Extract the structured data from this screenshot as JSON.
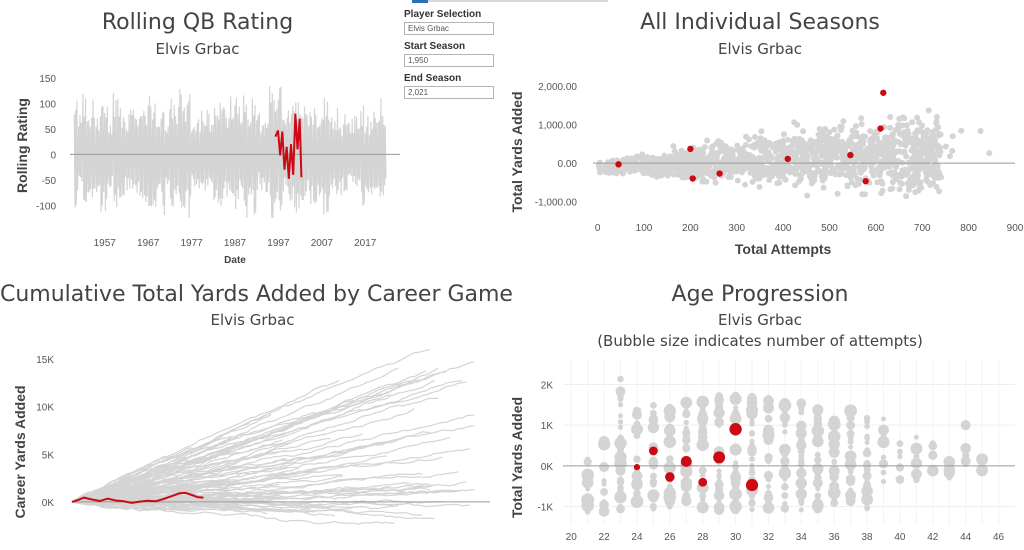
{
  "controls": {
    "player_label": "Player Selection",
    "player_value": "Elvis Grbac",
    "start_label": "Start Season",
    "start_value": "1,950",
    "end_label": "End Season",
    "end_value": "2,021"
  },
  "colors": {
    "background_series": "#d4d4d4",
    "highlight": "#cc0a14",
    "zero_line": "#9a9a9a"
  },
  "panels": {
    "rolling": {
      "title": "Rolling QB Rating",
      "subtitle": "Elvis Grbac"
    },
    "seasons": {
      "title": "All Individual Seasons",
      "subtitle": "Elvis Grbac"
    },
    "cumulative": {
      "title": "Cumulative Total Yards Added by Career Game",
      "subtitle": "Elvis Grbac"
    },
    "age": {
      "title": "Age Progression",
      "subtitle": "Elvis Grbac",
      "note": "(Bubble size indicates number of attempts)"
    }
  },
  "chart_data": [
    {
      "id": "rolling",
      "type": "line",
      "title": "Rolling QB Rating",
      "subtitle": "Elvis Grbac",
      "xlabel": "Date",
      "ylabel": "Rolling Rating",
      "x_ticks": [
        "1957",
        "1967",
        "1977",
        "1987",
        "1997",
        "2007",
        "2017"
      ],
      "y_ticks": [
        150,
        100,
        50,
        0,
        -50,
        -100
      ],
      "xlim": [
        1949,
        2025
      ],
      "ylim": [
        -125,
        160
      ],
      "grid": false,
      "background_range": {
        "x_from": 1950,
        "x_to": 2021,
        "y_min_approx": -125,
        "y_max_approx": 165
      },
      "highlight": {
        "series": [
          {
            "date": 1996.3,
            "value": 35
          },
          {
            "date": 1996.9,
            "value": 47
          },
          {
            "date": 1997.4,
            "value": -2
          },
          {
            "date": 1997.9,
            "value": 45
          },
          {
            "date": 1998.4,
            "value": -30
          },
          {
            "date": 1998.9,
            "value": 15
          },
          {
            "date": 1999.4,
            "value": -48
          },
          {
            "date": 1999.9,
            "value": 20
          },
          {
            "date": 2000.4,
            "value": -40
          },
          {
            "date": 2000.9,
            "value": 80
          },
          {
            "date": 2001.4,
            "value": 10
          },
          {
            "date": 2001.9,
            "value": 70
          },
          {
            "date": 2002.3,
            "value": -45
          }
        ]
      }
    },
    {
      "id": "seasons",
      "type": "scatter",
      "title": "All Individual Seasons",
      "subtitle": "Elvis Grbac",
      "xlabel": "Total Attempts",
      "ylabel": "Total Yards Added",
      "x_ticks": [
        0,
        100,
        200,
        300,
        400,
        500,
        600,
        700,
        800,
        900
      ],
      "y_ticks": [
        "2,000.00",
        "1,000.00",
        "0.00",
        "-1,000.00"
      ],
      "xlim": [
        -10,
        900
      ],
      "ylim": [
        -1400,
        2500
      ],
      "grid": false,
      "highlight": [
        {
          "attempts": 45,
          "yards_added": -30
        },
        {
          "attempts": 200,
          "yards_added": 370
        },
        {
          "attempts": 205,
          "yards_added": -400
        },
        {
          "attempts": 263,
          "yards_added": -270
        },
        {
          "attempts": 410,
          "yards_added": 110
        },
        {
          "attempts": 545,
          "yards_added": 210
        },
        {
          "attempts": 578,
          "yards_added": -470
        },
        {
          "attempts": 610,
          "yards_added": 900
        },
        {
          "attempts": 616,
          "yards_added": 1830
        }
      ]
    },
    {
      "id": "cumulative",
      "type": "line",
      "title": "Cumulative Total Yards Added by Career Game",
      "subtitle": "Elvis Grbac",
      "xlabel": "",
      "ylabel": "Career Yards Added",
      "y_ticks": [
        "15K",
        "10K",
        "5K",
        "0K"
      ],
      "ylim": [
        -4000,
        17000
      ],
      "xlim": [
        0,
        420
      ],
      "grid": false,
      "background_range": {
        "max_games_approx": 410,
        "y_max_approx": 16500,
        "y_min_approx": -2500
      },
      "highlight": {
        "series": [
          {
            "game": 0,
            "value": 0
          },
          {
            "game": 6,
            "value": 200
          },
          {
            "game": 12,
            "value": 450
          },
          {
            "game": 20,
            "value": 250
          },
          {
            "game": 28,
            "value": 100
          },
          {
            "game": 36,
            "value": 350
          },
          {
            "game": 44,
            "value": 150
          },
          {
            "game": 52,
            "value": 60
          },
          {
            "game": 60,
            "value": -100
          },
          {
            "game": 68,
            "value": 30
          },
          {
            "game": 76,
            "value": 120
          },
          {
            "game": 84,
            "value": 60
          },
          {
            "game": 92,
            "value": 300
          },
          {
            "game": 100,
            "value": 600
          },
          {
            "game": 108,
            "value": 900
          },
          {
            "game": 114,
            "value": 950
          },
          {
            "game": 120,
            "value": 750
          },
          {
            "game": 126,
            "value": 500
          },
          {
            "game": 132,
            "value": 450
          }
        ]
      }
    },
    {
      "id": "age",
      "type": "scatter",
      "title": "Age Progression",
      "subtitle": "Elvis Grbac",
      "note": "(Bubble size indicates number of attempts)",
      "xlabel": "",
      "ylabel": "Total Yards Added",
      "x_ticks": [
        20,
        22,
        24,
        26,
        28,
        30,
        32,
        34,
        36,
        38,
        40,
        42,
        44,
        46
      ],
      "y_ticks": [
        "2K",
        "1K",
        "0K",
        "-1K"
      ],
      "xlim": [
        19.5,
        47
      ],
      "ylim": [
        -1450,
        2600
      ],
      "grid": true,
      "highlight": [
        {
          "age": 24,
          "yards_added": -30,
          "attempts": 45
        },
        {
          "age": 25,
          "yards_added": 370,
          "attempts": 200
        },
        {
          "age": 26,
          "yards_added": -270,
          "attempts": 263
        },
        {
          "age": 27,
          "yards_added": 110,
          "attempts": 410
        },
        {
          "age": 28,
          "yards_added": -400,
          "attempts": 205
        },
        {
          "age": 29,
          "yards_added": 210,
          "attempts": 545
        },
        {
          "age": 30,
          "yards_added": 900,
          "attempts": 610
        },
        {
          "age": 31,
          "yards_added": -470,
          "attempts": 578
        }
      ]
    }
  ]
}
